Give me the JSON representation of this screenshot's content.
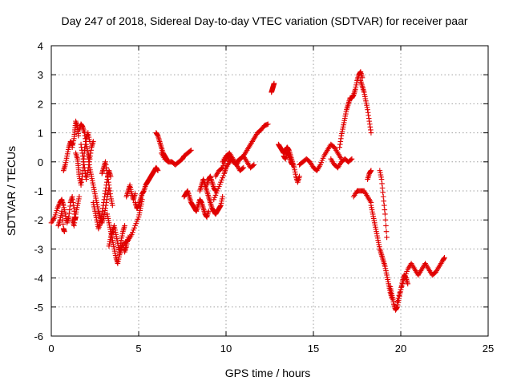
{
  "chart_data": {
    "type": "scatter",
    "title": "Day 247 of 2018, Sidereal Day-to-day VTEC variation (SDTVAR) for receiver paar",
    "xlabel": "GPS time / hours",
    "ylabel": "SDTVAR / TECUs",
    "xlim": [
      0,
      25
    ],
    "ylim": [
      -6,
      4
    ],
    "x_ticks": [
      0,
      5,
      10,
      15,
      20,
      25
    ],
    "y_ticks": [
      -6,
      -5,
      -4,
      -3,
      -2,
      -1,
      0,
      1,
      2,
      3,
      4
    ],
    "grid": true,
    "marker": "plus",
    "color": "#e00000",
    "series": [
      {
        "name": "SDTVAR",
        "segments": [
          {
            "x": [
              0.0,
              0.2,
              0.35,
              0.5,
              0.6,
              0.7,
              0.8,
              0.9,
              1.0,
              1.1,
              1.2,
              1.3,
              1.35,
              1.4
            ],
            "y": [
              -2.1,
              -1.9,
              -1.6,
              -1.4,
              -1.3,
              -1.5,
              -1.8,
              -2.1,
              -1.9,
              -1.4,
              -1.2,
              -1.6,
              -2.0,
              -1.9
            ]
          },
          {
            "x": [
              0.4,
              0.5,
              0.6,
              0.7,
              0.75
            ],
            "y": [
              -2.2,
              -2.0,
              -1.7,
              -2.3,
              -2.4
            ]
          },
          {
            "x": [
              0.7,
              0.8,
              0.9,
              1.0,
              1.1,
              1.2
            ],
            "y": [
              -0.3,
              -0.1,
              0.2,
              0.5,
              0.7,
              0.6
            ]
          },
          {
            "x": [
              1.2,
              1.3,
              1.4,
              1.5,
              1.6
            ],
            "y": [
              -2.0,
              -2.2,
              -1.8,
              -1.5,
              -1.2
            ]
          },
          {
            "x": [
              1.2,
              1.3,
              1.35,
              1.4,
              1.5,
              1.55
            ],
            "y": [
              0.5,
              0.8,
              1.1,
              1.4,
              1.2,
              0.9
            ]
          },
          {
            "x": [
              1.4,
              1.5,
              1.55,
              1.6,
              1.7,
              1.8,
              1.85,
              1.9,
              2.0,
              2.1,
              2.2
            ],
            "y": [
              0.3,
              0.1,
              -0.2,
              -0.5,
              -0.8,
              -0.4,
              0.0,
              0.4,
              0.8,
              1.0,
              0.7
            ]
          },
          {
            "x": [
              1.6,
              1.7,
              1.8,
              1.9,
              2.0,
              2.1,
              2.2
            ],
            "y": [
              1.1,
              1.3,
              1.2,
              1.0,
              0.6,
              0.3,
              0.1
            ]
          },
          {
            "x": [
              1.7,
              1.8,
              1.9,
              2.0,
              2.1,
              2.2,
              2.3,
              2.4
            ],
            "y": [
              0.6,
              0.2,
              -0.2,
              -0.6,
              -0.3,
              0.1,
              0.5,
              0.7
            ]
          },
          {
            "x": [
              2.1,
              2.2,
              2.3,
              2.4,
              2.5,
              2.6,
              2.7,
              2.8,
              2.9,
              3.0,
              3.1,
              3.2,
              3.3
            ],
            "y": [
              0.2,
              -0.2,
              -0.5,
              -0.8,
              -1.1,
              -1.4,
              -1.7,
              -1.9,
              -2.1,
              -1.9,
              -1.6,
              -1.2,
              -0.9
            ]
          },
          {
            "x": [
              2.4,
              2.5,
              2.6,
              2.7,
              2.8,
              2.9,
              3.0,
              3.1,
              3.2,
              3.3,
              3.4
            ],
            "y": [
              -1.4,
              -1.7,
              -2.0,
              -2.3,
              -2.1,
              -1.8,
              -1.4,
              -1.0,
              -0.6,
              -0.3,
              -0.5
            ]
          },
          {
            "x": [
              2.9,
              3.0,
              3.1,
              3.2,
              3.3,
              3.4,
              3.5
            ],
            "y": [
              -0.4,
              -0.2,
              0.0,
              -0.4,
              -0.8,
              -1.2,
              -1.5
            ]
          },
          {
            "x": [
              3.2,
              3.3,
              3.4,
              3.5,
              3.6,
              3.7,
              3.8,
              3.9,
              4.0,
              4.1,
              4.2,
              4.3,
              4.4
            ],
            "y": [
              -1.8,
              -2.1,
              -2.4,
              -2.7,
              -3.0,
              -3.3,
              -3.5,
              -3.2,
              -3.0,
              -2.8,
              -3.1,
              -2.9,
              -2.6
            ]
          },
          {
            "x": [
              3.3,
              3.4,
              3.5,
              3.6,
              3.7,
              3.8,
              3.9,
              4.0,
              4.1,
              4.2
            ],
            "y": [
              -2.9,
              -2.6,
              -2.4,
              -2.2,
              -2.5,
              -2.8,
              -3.1,
              -2.7,
              -2.4,
              -2.2
            ]
          },
          {
            "x": [
              4.2,
              4.4,
              4.6,
              4.8,
              5.0,
              5.1,
              5.2
            ],
            "y": [
              -2.8,
              -2.7,
              -2.5,
              -2.2,
              -1.9,
              -1.6,
              -1.3
            ]
          },
          {
            "x": [
              4.3,
              4.4,
              4.5,
              4.6,
              4.7,
              4.8
            ],
            "y": [
              -1.2,
              -1.0,
              -0.8,
              -1.1,
              -1.3,
              -1.1
            ]
          },
          {
            "x": [
              4.8,
              4.9,
              5.0,
              5.1,
              5.2,
              5.3,
              5.4,
              5.5,
              5.6,
              5.7,
              5.8,
              5.9,
              6.0,
              6.1
            ],
            "y": [
              -1.4,
              -1.6,
              -1.5,
              -1.3,
              -1.1,
              -1.0,
              -0.8,
              -0.7,
              -0.6,
              -0.5,
              -0.4,
              -0.3,
              -0.2,
              -0.3
            ]
          },
          {
            "x": [
              6.0,
              6.1,
              6.2,
              6.3,
              6.4,
              6.5,
              6.6
            ],
            "y": [
              1.0,
              0.9,
              0.7,
              0.5,
              0.3,
              0.2,
              0.1
            ]
          },
          {
            "x": [
              6.3,
              6.5,
              6.7,
              6.9,
              7.1,
              7.3,
              7.5,
              7.6,
              7.8,
              8.0
            ],
            "y": [
              0.3,
              0.1,
              0.0,
              0.0,
              -0.1,
              0.0,
              0.1,
              0.2,
              0.3,
              0.4
            ]
          },
          {
            "x": [
              7.6,
              7.7,
              7.8,
              7.9,
              8.0,
              8.1,
              8.2,
              8.3,
              8.4,
              8.5,
              8.6,
              8.7,
              8.8,
              8.9,
              9.0
            ],
            "y": [
              -1.2,
              -1.1,
              -1.0,
              -1.2,
              -1.4,
              -1.5,
              -1.6,
              -1.7,
              -1.5,
              -1.3,
              -1.4,
              -1.6,
              -1.8,
              -1.9,
              -1.7
            ]
          },
          {
            "x": [
              8.5,
              8.6,
              8.7,
              8.8,
              8.9,
              9.0,
              9.1,
              9.2,
              9.3,
              9.4,
              9.5,
              9.6,
              9.7,
              9.8
            ],
            "y": [
              -1.0,
              -0.8,
              -0.6,
              -0.8,
              -1.0,
              -1.2,
              -1.4,
              -1.6,
              -1.7,
              -1.8,
              -1.7,
              -1.6,
              -1.5,
              -1.2
            ]
          },
          {
            "x": [
              8.9,
              9.0,
              9.1,
              9.2,
              9.3,
              9.4
            ],
            "y": [
              -0.8,
              -0.6,
              -0.5,
              -0.7,
              -0.9,
              -1.0
            ]
          },
          {
            "x": [
              9.3,
              9.5,
              9.7,
              9.9,
              10.0,
              10.2,
              10.3
            ],
            "y": [
              -1.3,
              -1.0,
              -0.7,
              -0.4,
              -0.2,
              0.0,
              0.1
            ]
          },
          {
            "x": [
              9.4,
              9.6,
              9.8,
              10.0,
              10.2,
              10.4,
              10.6,
              10.8,
              11.0,
              11.2,
              11.4,
              11.6
            ],
            "y": [
              -0.5,
              -0.3,
              -0.2,
              0.1,
              0.2,
              0.0,
              -0.1,
              0.1,
              0.2,
              0.0,
              -0.2,
              -0.1
            ]
          },
          {
            "x": [
              9.8,
              10.0,
              10.2,
              10.4,
              10.6,
              10.8,
              11.0
            ],
            "y": [
              0.0,
              0.2,
              0.3,
              0.1,
              -0.1,
              -0.3,
              -0.2
            ]
          },
          {
            "x": [
              10.6,
              10.8,
              11.0,
              11.2,
              11.4,
              11.6,
              11.8,
              12.0,
              12.2,
              12.4
            ],
            "y": [
              0.0,
              0.1,
              0.2,
              0.4,
              0.6,
              0.8,
              1.0,
              1.1,
              1.25,
              1.3
            ]
          },
          {
            "x": [
              12.6,
              12.65,
              12.7,
              12.75
            ],
            "y": [
              2.4,
              2.5,
              2.6,
              2.7
            ]
          },
          {
            "x": [
              13.0,
              13.1,
              13.2,
              13.3,
              13.4,
              13.5,
              13.6,
              13.7,
              13.8,
              13.9,
              14.0,
              14.1,
              14.2
            ],
            "y": [
              0.6,
              0.5,
              0.4,
              0.3,
              0.4,
              0.5,
              0.4,
              0.2,
              0.0,
              -0.2,
              -0.5,
              -0.7,
              -0.5
            ]
          },
          {
            "x": [
              13.3,
              13.4,
              13.5,
              13.6,
              13.7,
              13.8
            ],
            "y": [
              0.2,
              0.1,
              0.3,
              0.2,
              0.0,
              -0.1
            ]
          },
          {
            "x": [
              14.2,
              14.4,
              14.6,
              14.8,
              15.0,
              15.2,
              15.4,
              15.6,
              15.8,
              16.0,
              16.2,
              16.4,
              16.6
            ],
            "y": [
              -0.1,
              0.0,
              0.1,
              0.0,
              -0.2,
              -0.3,
              -0.1,
              0.2,
              0.4,
              0.6,
              0.5,
              0.3,
              0.1
            ]
          },
          {
            "x": [
              16.0,
              16.2,
              16.4,
              16.6,
              16.8,
              17.0,
              17.2
            ],
            "y": [
              0.1,
              -0.1,
              -0.2,
              0.0,
              0.1,
              0.0,
              0.1
            ]
          },
          {
            "x": [
              16.5,
              16.6,
              16.7,
              16.8,
              16.9,
              17.0,
              17.1,
              17.2,
              17.3,
              17.4,
              17.5,
              17.6,
              17.7,
              17.8
            ],
            "y": [
              0.5,
              0.9,
              1.2,
              1.5,
              1.8,
              2.0,
              2.2,
              2.2,
              2.3,
              2.5,
              2.8,
              3.0,
              3.1,
              2.9
            ]
          },
          {
            "x": [
              17.7,
              17.8,
              17.9,
              18.0,
              18.1,
              18.2,
              18.3
            ],
            "y": [
              2.8,
              2.6,
              2.4,
              2.1,
              1.8,
              1.4,
              1.0
            ]
          },
          {
            "x": [
              17.3,
              17.5,
              17.7,
              17.9,
              18.1,
              18.3
            ],
            "y": [
              -1.2,
              -1.0,
              -1.0,
              -1.0,
              -1.2,
              -1.4
            ]
          },
          {
            "x": [
              18.1,
              18.2,
              18.3
            ],
            "y": [
              -0.6,
              -0.4,
              -0.3
            ]
          },
          {
            "x": [
              18.3,
              18.4,
              18.5,
              18.6,
              18.7,
              18.8,
              18.9,
              19.0,
              19.1,
              19.2,
              19.3,
              19.4,
              19.5
            ],
            "y": [
              -1.5,
              -1.8,
              -2.1,
              -2.4,
              -2.7,
              -3.0,
              -3.2,
              -3.4,
              -3.6,
              -3.9,
              -4.2,
              -4.5,
              -4.7
            ]
          },
          {
            "x": [
              18.8,
              18.9,
              19.0,
              19.1,
              19.2
            ],
            "y": [
              -0.3,
              -0.6,
              -1.2,
              -1.8,
              -2.6
            ]
          },
          {
            "x": [
              19.4,
              19.5,
              19.6,
              19.7,
              19.8,
              19.9,
              20.0,
              20.1,
              20.2,
              20.3,
              20.4
            ],
            "y": [
              -4.3,
              -4.6,
              -4.9,
              -5.1,
              -5.0,
              -4.7,
              -4.4,
              -4.1,
              -3.9,
              -4.0,
              -4.2
            ]
          },
          {
            "x": [
              19.8,
              20.0,
              20.2,
              20.4,
              20.6,
              20.8,
              21.0,
              21.2,
              21.4,
              21.6,
              21.8,
              22.0,
              22.2,
              22.4,
              22.5
            ],
            "y": [
              -4.8,
              -4.4,
              -4.0,
              -3.7,
              -3.5,
              -3.7,
              -3.9,
              -3.7,
              -3.5,
              -3.7,
              -3.9,
              -3.8,
              -3.6,
              -3.4,
              -3.3
            ]
          }
        ]
      }
    ]
  }
}
